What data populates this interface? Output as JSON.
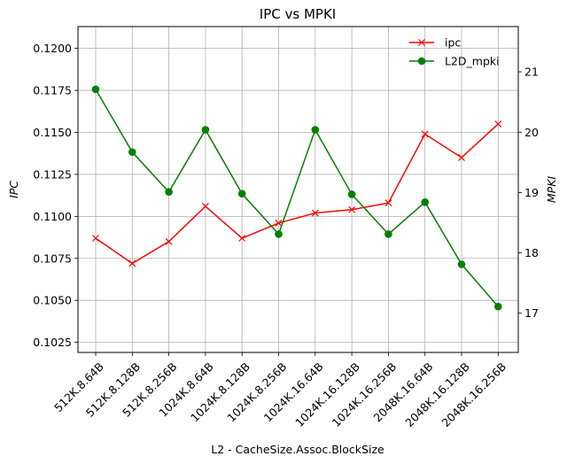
{
  "chart_data": {
    "type": "line",
    "title": "IPC vs MPKI",
    "xlabel": "L2 - CacheSize.Assoc.BlockSize",
    "ylabel_left": "IPC",
    "ylabel_right": "MPKI",
    "categories": [
      "512K.8.64B",
      "512K.8.128B",
      "512K.8.256B",
      "1024K.8.64B",
      "1024K.8.128B",
      "1024K.8.256B",
      "1024K.16.64B",
      "1024K.16.128B",
      "1024K.16.256B",
      "2048K.16.64B",
      "2048K.16.128B",
      "2048K.16.256B"
    ],
    "ylim_left": [
      0.1019,
      0.1213
    ],
    "yticks_left": [
      "0.1025",
      "0.1050",
      "0.1075",
      "0.1100",
      "0.1125",
      "0.1150",
      "0.1175",
      "0.1200"
    ],
    "ylim_right": [
      16.35,
      21.75
    ],
    "yticks_right": [
      "17",
      "18",
      "19",
      "20",
      "21"
    ],
    "grid": true,
    "legend_position": "top-right",
    "series": [
      {
        "name": "ipc",
        "axis": "left",
        "color": "#ff0000",
        "marker": "x",
        "values": [
          0.1087,
          0.1072,
          0.1085,
          0.1106,
          0.1087,
          0.1096,
          0.1102,
          0.1104,
          0.1108,
          0.1149,
          0.1135,
          0.1155
        ]
      },
      {
        "name": "L2D_mpki",
        "axis": "right",
        "color": "#008000",
        "marker": "o",
        "values": [
          20.71,
          19.67,
          19.01,
          20.04,
          18.98,
          18.31,
          20.04,
          18.97,
          18.31,
          18.84,
          17.81,
          17.11
        ]
      }
    ]
  }
}
